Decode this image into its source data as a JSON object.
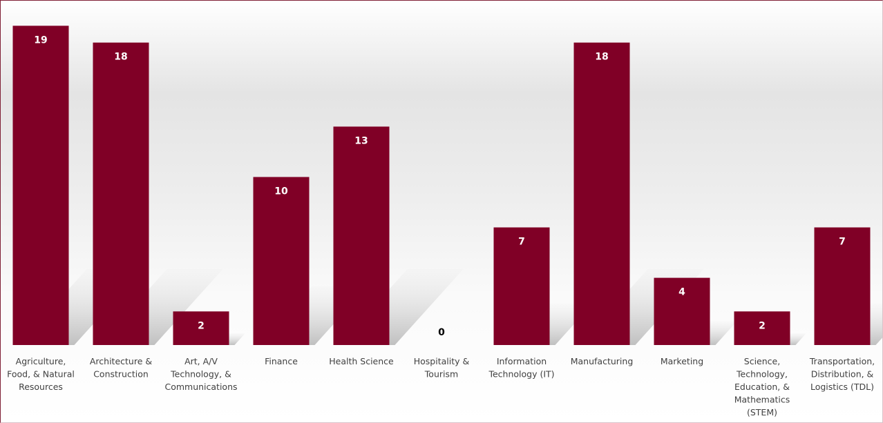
{
  "chart_data": {
    "type": "bar",
    "title": "",
    "xlabel": "",
    "ylabel": "",
    "categories": [
      "Agriculture, Food, & Natural Resources",
      "Architecture & Construction",
      "Art, A/V Technology, & Communications",
      "Finance",
      "Health Science",
      "Hospitality & Tourism",
      "Information Technology (IT)",
      "Manufacturing",
      "Marketing",
      "Science, Technology, Education, & Mathematics (STEM)",
      "Transportation, Distribution, & Logistics (TDL)"
    ],
    "category_lines": [
      [
        "Agriculture,",
        "Food, & Natural",
        "Resources"
      ],
      [
        "Architecture &",
        "Construction"
      ],
      [
        "Art, A/V",
        "Technology, &",
        "Communications"
      ],
      [
        "Finance"
      ],
      [
        "Health Science"
      ],
      [
        "Hospitality &",
        "Tourism"
      ],
      [
        "Information",
        "Technology (IT)"
      ],
      [
        "Manufacturing"
      ],
      [
        "Marketing"
      ],
      [
        "Science,",
        "Technology,",
        "Education, &",
        "Mathematics",
        "(STEM)"
      ],
      [
        "Transportation,",
        "Distribution, &",
        "Logistics (TDL)"
      ]
    ],
    "values": [
      19,
      18,
      2,
      10,
      13,
      0,
      7,
      18,
      4,
      2,
      7
    ],
    "ylim": [
      0,
      19
    ],
    "grid": false,
    "legend": "none",
    "data_labels": true,
    "colors": {
      "bar": "#800026",
      "label_inside": "#ffffff",
      "label_outside": "#000000",
      "tick_label": "#404040",
      "shadow": "#9a9a9a"
    }
  }
}
